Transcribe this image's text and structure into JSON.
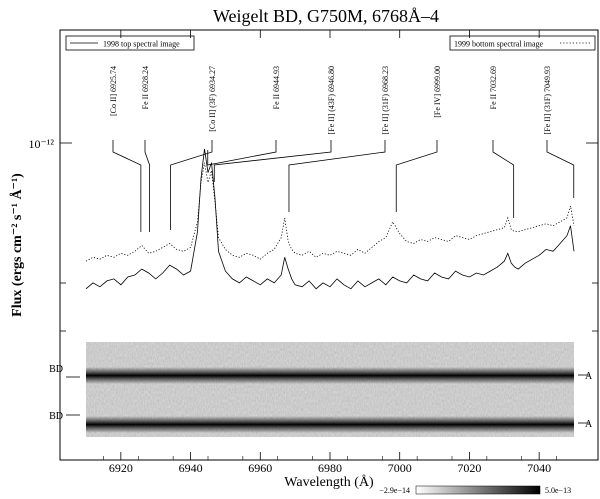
{
  "chart_data": {
    "type": "line",
    "title": "Weigelt BD, G750M, 6768Å–4",
    "xlabel": "Wavelength (Å)",
    "ylabel": "Flux (ergs cm⁻² s⁻¹ Å⁻¹)",
    "y_tick_label": "10⁻¹²",
    "xlim": [
      6910,
      7050
    ],
    "x_ticks": [
      6920,
      6940,
      6960,
      6980,
      7000,
      7020,
      7040
    ],
    "legend": {
      "left": "1998 top spectral image",
      "right": "1999 bottom spectral image"
    },
    "line_ids": [
      {
        "label": "[Co II] 6925.74",
        "wavelength": 6925.74
      },
      {
        "label": "Fe II 6928.24",
        "wavelength": 6928.24
      },
      {
        "label": "[Co II] (3F) 6934.27",
        "wavelength": 6934.27
      },
      {
        "label": "Fe II 6944.93",
        "wavelength": 6944.93
      },
      {
        "label": "[Fe II] (43F) 6946.80",
        "wavelength": 6946.8
      },
      {
        "label": "[Fe II] (31F) 6968.23",
        "wavelength": 6968.23
      },
      {
        "label": "[Fe IV] 6999.00",
        "wavelength": 6999.0
      },
      {
        "label": "Fe II 7032.69",
        "wavelength": 7032.69
      },
      {
        "label": "[Fe II] (31F) 7049.93",
        "wavelength": 7049.93
      }
    ],
    "series": [
      {
        "name": "1998 top spectral image",
        "style": "solid",
        "x": [
          6910,
          6912,
          6914,
          6916,
          6918,
          6920,
          6922,
          6924,
          6926,
          6928,
          6930,
          6932,
          6934,
          6936,
          6938,
          6940,
          6942,
          6943,
          6944,
          6945,
          6946,
          6947,
          6948,
          6950,
          6952,
          6954,
          6956,
          6958,
          6960,
          6962,
          6964,
          6966,
          6967,
          6968,
          6969,
          6970,
          6972,
          6974,
          6976,
          6978,
          6980,
          6982,
          6984,
          6986,
          6988,
          6990,
          6992,
          6994,
          6996,
          6998,
          7000,
          7002,
          7004,
          7006,
          7008,
          7010,
          7012,
          7014,
          7016,
          7018,
          7020,
          7022,
          7024,
          7026,
          7028,
          7030,
          7031,
          7032,
          7033,
          7034,
          7036,
          7038,
          7040,
          7042,
          7044,
          7046,
          7048,
          7049,
          7050
        ],
        "y": [
          0.26,
          0.29,
          0.27,
          0.3,
          0.31,
          0.28,
          0.32,
          0.33,
          0.36,
          0.34,
          0.31,
          0.34,
          0.38,
          0.36,
          0.33,
          0.35,
          0.55,
          0.82,
          0.97,
          0.85,
          0.9,
          0.72,
          0.45,
          0.35,
          0.31,
          0.29,
          0.32,
          0.3,
          0.28,
          0.31,
          0.29,
          0.33,
          0.42,
          0.36,
          0.31,
          0.28,
          0.27,
          0.3,
          0.26,
          0.29,
          0.27,
          0.31,
          0.28,
          0.26,
          0.3,
          0.27,
          0.29,
          0.31,
          0.28,
          0.32,
          0.3,
          0.29,
          0.33,
          0.31,
          0.3,
          0.34,
          0.32,
          0.31,
          0.35,
          0.33,
          0.32,
          0.34,
          0.33,
          0.35,
          0.37,
          0.4,
          0.44,
          0.39,
          0.37,
          0.36,
          0.39,
          0.41,
          0.43,
          0.46,
          0.45,
          0.49,
          0.53,
          0.58,
          0.45
        ]
      },
      {
        "name": "1999 bottom spectral image",
        "style": "dotted",
        "x": [
          6910,
          6912,
          6914,
          6916,
          6918,
          6920,
          6922,
          6924,
          6926,
          6928,
          6930,
          6932,
          6934,
          6936,
          6938,
          6940,
          6942,
          6943,
          6944,
          6945,
          6946,
          6947,
          6948,
          6950,
          6952,
          6954,
          6956,
          6958,
          6960,
          6962,
          6964,
          6966,
          6967,
          6968,
          6969,
          6970,
          6972,
          6974,
          6976,
          6978,
          6980,
          6982,
          6984,
          6986,
          6988,
          6990,
          6992,
          6994,
          6996,
          6998,
          7000,
          7002,
          7004,
          7006,
          7008,
          7010,
          7012,
          7014,
          7016,
          7018,
          7020,
          7022,
          7024,
          7026,
          7028,
          7030,
          7031,
          7032,
          7033,
          7034,
          7036,
          7038,
          7040,
          7042,
          7044,
          7046,
          7048,
          7049,
          7050
        ],
        "y": [
          0.4,
          0.42,
          0.41,
          0.43,
          0.42,
          0.44,
          0.43,
          0.45,
          0.48,
          0.44,
          0.45,
          0.47,
          0.49,
          0.46,
          0.45,
          0.47,
          0.6,
          0.8,
          0.9,
          0.8,
          0.86,
          0.7,
          0.52,
          0.46,
          0.43,
          0.42,
          0.44,
          0.43,
          0.41,
          0.44,
          0.46,
          0.52,
          0.62,
          0.5,
          0.46,
          0.44,
          0.43,
          0.45,
          0.42,
          0.44,
          0.43,
          0.45,
          0.44,
          0.43,
          0.46,
          0.44,
          0.47,
          0.5,
          0.52,
          0.6,
          0.54,
          0.5,
          0.49,
          0.51,
          0.5,
          0.52,
          0.51,
          0.5,
          0.53,
          0.52,
          0.51,
          0.53,
          0.54,
          0.55,
          0.56,
          0.57,
          0.62,
          0.56,
          0.55,
          0.55,
          0.56,
          0.57,
          0.58,
          0.59,
          0.58,
          0.6,
          0.62,
          0.68,
          0.58
        ]
      }
    ],
    "image_panel": {
      "row_labels_left": [
        "BD",
        "BD"
      ],
      "row_labels_right": [
        "A",
        "A"
      ],
      "colorbar": {
        "min_label": "−2.9e−14",
        "max_label": "5.0e−13"
      }
    }
  }
}
